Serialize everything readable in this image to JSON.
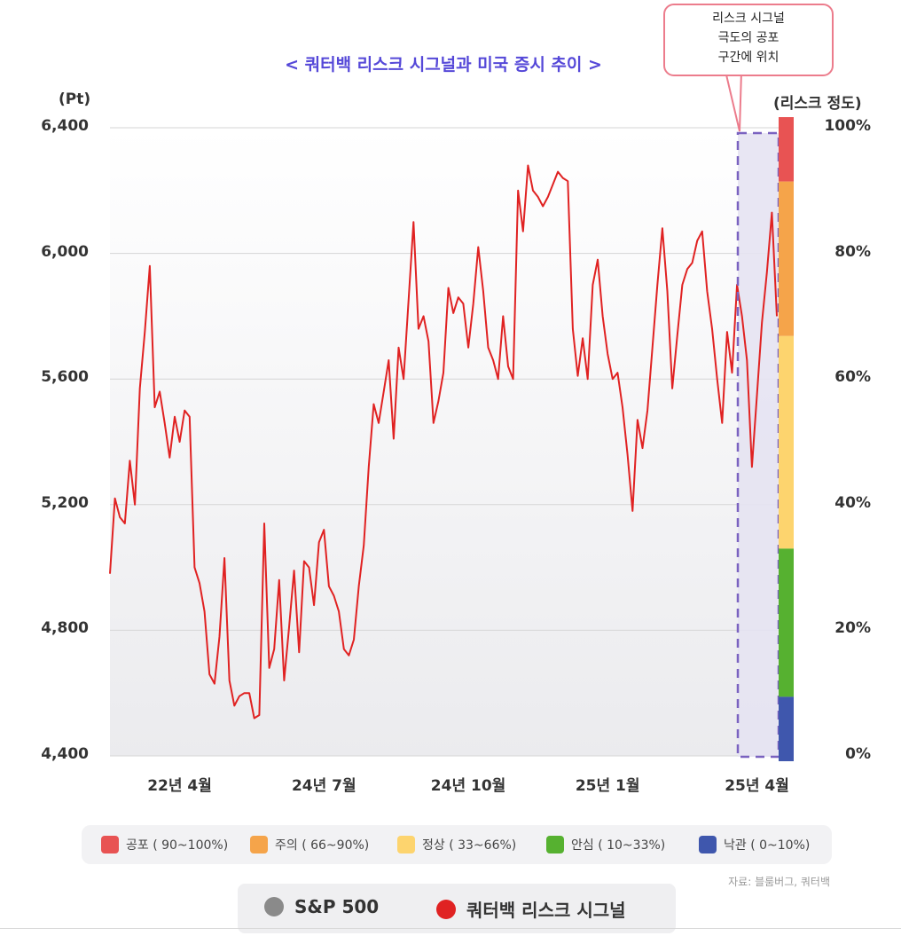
{
  "chart_data": {
    "type": "line",
    "title": "< 쿼터백 리스크 시그널과 미국 증시 추이 >",
    "y_left_unit": "(Pt)",
    "y_right_unit": "(리스크 정도)",
    "ylim": [
      4400,
      6400
    ],
    "y_ticks": [
      "6,400",
      "6,000",
      "5,600",
      "5,200",
      "4,800",
      "4,400"
    ],
    "y_tick_values": [
      6400,
      6000,
      5600,
      5200,
      4800,
      4400
    ],
    "y_right_ticks": [
      "100%",
      "80%",
      "60%",
      "40%",
      "20%",
      "0%"
    ],
    "y_right_values": [
      100,
      80,
      60,
      40,
      20,
      0
    ],
    "x_ticks": [
      "22년 4월",
      "24년 7월",
      "24년 10월",
      "25년 1월",
      "25년 4월"
    ],
    "x_tick_index": [
      14,
      43,
      72,
      100,
      130
    ],
    "x_range": [
      0,
      134
    ],
    "grid": true,
    "series": [
      {
        "name": "쿼터백 리스크 시그널",
        "color": "#e02222",
        "values": [
          4980,
          5220,
          5160,
          5140,
          5340,
          5200,
          5570,
          5750,
          5960,
          5510,
          5560,
          5460,
          5350,
          5480,
          5400,
          5500,
          5480,
          5000,
          4950,
          4860,
          4660,
          4630,
          4780,
          5030,
          4640,
          4560,
          4590,
          4600,
          4600,
          4520,
          4530,
          5140,
          4680,
          4740,
          4960,
          4640,
          4810,
          4990,
          4730,
          5020,
          5000,
          4880,
          5080,
          5120,
          4940,
          4910,
          4860,
          4740,
          4720,
          4770,
          4940,
          5070,
          5320,
          5520,
          5460,
          5560,
          5660,
          5410,
          5700,
          5600,
          5850,
          6100,
          5760,
          5800,
          5720,
          5460,
          5530,
          5620,
          5890,
          5810,
          5860,
          5840,
          5700,
          5840,
          6020,
          5880,
          5700,
          5660,
          5600,
          5800,
          5640,
          5600,
          6200,
          6070,
          6280,
          6200,
          6180,
          6150,
          6180,
          6220,
          6260,
          6240,
          6230,
          5760,
          5610,
          5730,
          5600,
          5900,
          5980,
          5800,
          5680,
          5600,
          5620,
          5510,
          5360,
          5180,
          5470,
          5380,
          5500,
          5700,
          5900,
          6080,
          5880,
          5570,
          5740,
          5900,
          5950,
          5970,
          6040,
          6070,
          5880,
          5760,
          5600,
          5460,
          5750,
          5620,
          5900,
          5800,
          5660,
          5320,
          5550,
          5780,
          5940,
          6130,
          5800
        ]
      }
    ],
    "risk_bands": [
      {
        "label": "공포 ( 90~100%)",
        "from": 90,
        "to": 100,
        "color": "#e85353"
      },
      {
        "label": "주의 ( 66~90%)",
        "from": 66,
        "to": 90,
        "color": "#f5a44a"
      },
      {
        "label": "정상 ( 33~66%)",
        "from": 33,
        "to": 66,
        "color": "#fdd46e"
      },
      {
        "label": "안심 ( 10~33%)",
        "from": 10,
        "to": 33,
        "color": "#56b130"
      },
      {
        "label": "낙관 ( 0~10%)",
        "from": 0,
        "to": 10,
        "color": "#3f57ad"
      }
    ]
  },
  "callout": {
    "line1": "리스크 시그널",
    "line2": "극도의 공포",
    "line3": "구간에 위치"
  },
  "source": "자료: 블룸버그, 쿼터백",
  "series_legend": [
    {
      "label": "S&P 500",
      "color": "#8a8a8a"
    },
    {
      "label": "쿼터백 리스크 시그널",
      "color": "#e02222"
    }
  ]
}
